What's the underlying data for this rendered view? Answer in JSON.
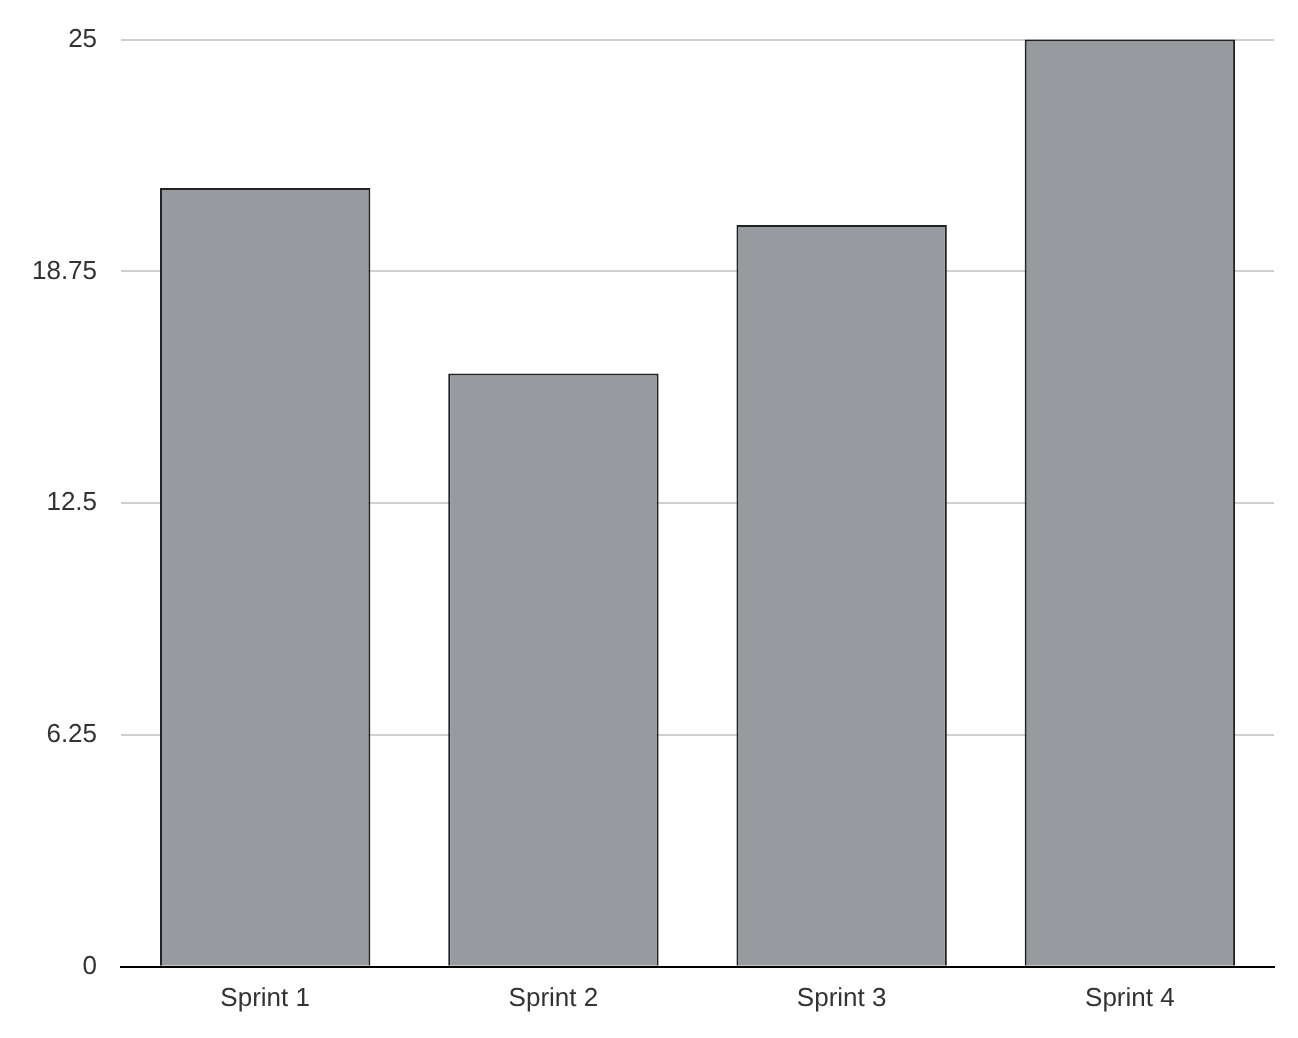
{
  "chart_data": {
    "type": "bar",
    "categories": [
      "Sprint 1",
      "Sprint 2",
      "Sprint 3",
      "Sprint 4"
    ],
    "values": [
      21,
      16,
      20,
      25
    ],
    "color": "#979a9e",
    "ylim": [
      0,
      25
    ],
    "yticks": [
      0,
      6.25,
      12.5,
      18.75,
      25
    ],
    "grid": "y"
  }
}
